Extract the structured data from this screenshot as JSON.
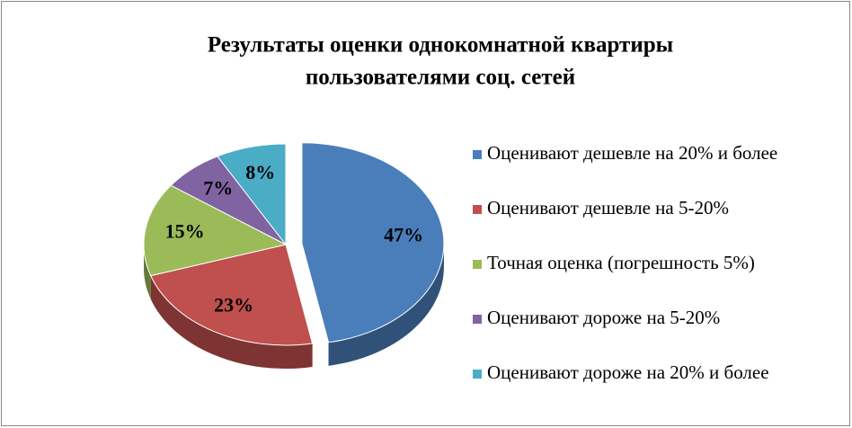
{
  "chart_data": {
    "type": "pie3d",
    "title": [
      "Результаты оценки однокомнатной квартиры",
      "пользователями соц. сетей"
    ],
    "categories": [
      "Оценивают дешевле на 20% и более",
      "Оценивают дешевле на 5-20%",
      "Точная оценка (погрешность 5%)",
      "Оценивают дороже на 5-20%",
      "Оценивают дороже на 20% и более"
    ],
    "values": [
      47,
      23,
      15,
      7,
      8
    ],
    "value_labels": [
      "47%",
      "23%",
      "15%",
      "7%",
      "8%"
    ],
    "colors": [
      "#4a7ebb",
      "#c0504d",
      "#9bbb59",
      "#8064a2",
      "#4bacc6"
    ],
    "exploded": [
      0
    ],
    "legend": "right"
  }
}
